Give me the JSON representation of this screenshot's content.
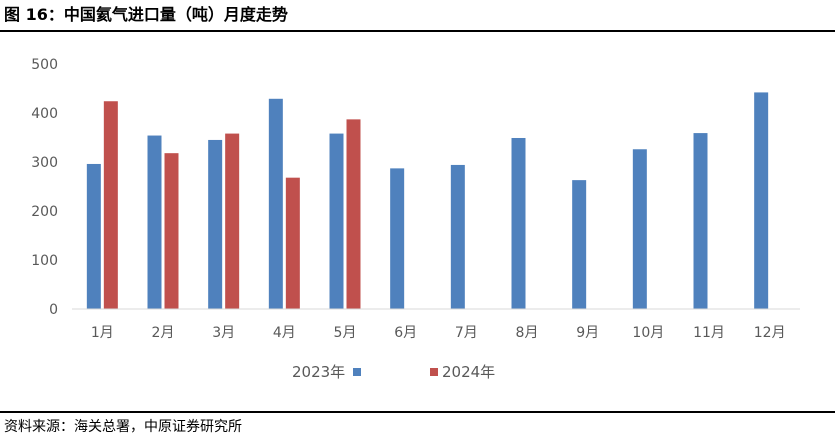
{
  "title": "图 16：中国氦气进口量（吨）月度走势",
  "source": "资料来源：海关总署，中原证券研究所",
  "chart_data": {
    "type": "bar",
    "categories": [
      "1月",
      "2月",
      "3月",
      "4月",
      "5月",
      "6月",
      "7月",
      "8月",
      "9月",
      "10月",
      "11月",
      "12月"
    ],
    "series": [
      {
        "name": "2023年",
        "color": "#4f81bd",
        "values": [
          296,
          354,
          345,
          429,
          358,
          287,
          294,
          349,
          263,
          326,
          359,
          442
        ]
      },
      {
        "name": "2024年",
        "color": "#c0504d",
        "values": [
          424,
          318,
          358,
          268,
          387,
          null,
          null,
          null,
          null,
          null,
          null,
          null
        ]
      }
    ],
    "yticks": [
      0,
      100,
      200,
      300,
      400,
      500
    ],
    "ylim": [
      0,
      500
    ],
    "grid": false,
    "legend": "bottom"
  }
}
